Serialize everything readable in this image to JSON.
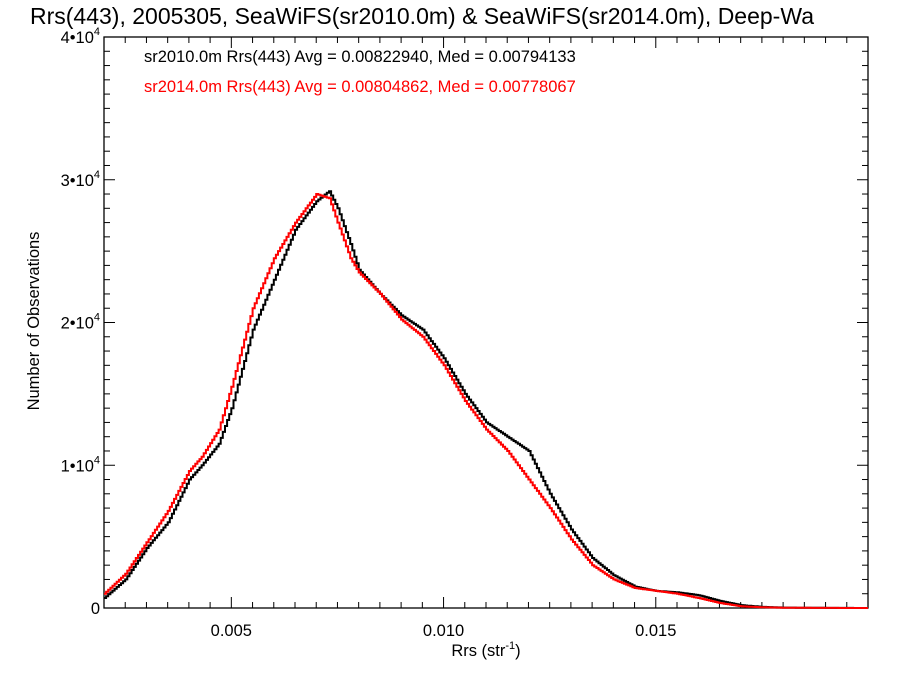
{
  "chart_data": {
    "type": "line",
    "title": "Rrs(443), 2005305, SeaWiFS(sr2010.0m) & SeaWiFS(sr2014.0m), Deep-Wa",
    "xlabel": "Rrs (str",
    "xlabel_sup": "-1",
    "xlabel_end": ")",
    "ylabel": "Number of Observations",
    "xlim": [
      0.002,
      0.02
    ],
    "ylim": [
      0,
      40000
    ],
    "x_ticks": [
      {
        "value": 0.005,
        "label": "0.005"
      },
      {
        "value": 0.01,
        "label": "0.010"
      },
      {
        "value": 0.015,
        "label": "0.015"
      }
    ],
    "y_ticks": [
      {
        "value": 0,
        "mant": "0",
        "exp": ""
      },
      {
        "value": 10000,
        "mant": "1•10",
        "exp": "4"
      },
      {
        "value": 20000,
        "mant": "2•10",
        "exp": "4"
      },
      {
        "value": 30000,
        "mant": "3•10",
        "exp": "4"
      },
      {
        "value": 40000,
        "mant": "4•10",
        "exp": "4"
      }
    ],
    "annotations": [
      {
        "text": "sr2010.0m Rrs(443) Avg = 0.00822940, Med = 0.00794133",
        "color": "#000000"
      },
      {
        "text": "sr2014.0m Rrs(443) Avg = 0.00804862, Med = 0.00778067",
        "color": "#ff0000"
      }
    ],
    "grid": false,
    "series": [
      {
        "name": "sr2010.0m",
        "color": "#000000",
        "points": [
          [
            0.002,
            700
          ],
          [
            0.0025,
            2000
          ],
          [
            0.003,
            4200
          ],
          [
            0.0035,
            6000
          ],
          [
            0.004,
            9000
          ],
          [
            0.0043,
            10000
          ],
          [
            0.0047,
            11500
          ],
          [
            0.005,
            14000
          ],
          [
            0.0055,
            19500
          ],
          [
            0.006,
            23000
          ],
          [
            0.0065,
            26500
          ],
          [
            0.007,
            28500
          ],
          [
            0.0073,
            29200
          ],
          [
            0.0075,
            28000
          ],
          [
            0.0078,
            25500
          ],
          [
            0.008,
            23700
          ],
          [
            0.0085,
            22000
          ],
          [
            0.009,
            20500
          ],
          [
            0.0095,
            19500
          ],
          [
            0.01,
            17500
          ],
          [
            0.0105,
            15000
          ],
          [
            0.011,
            13000
          ],
          [
            0.0115,
            12000
          ],
          [
            0.012,
            11000
          ],
          [
            0.0125,
            8000
          ],
          [
            0.013,
            5500
          ],
          [
            0.0135,
            3500
          ],
          [
            0.014,
            2300
          ],
          [
            0.0145,
            1500
          ],
          [
            0.015,
            1200
          ],
          [
            0.0155,
            1100
          ],
          [
            0.016,
            900
          ],
          [
            0.0165,
            500
          ],
          [
            0.017,
            200
          ],
          [
            0.0175,
            80
          ],
          [
            0.018,
            30
          ],
          [
            0.019,
            10
          ],
          [
            0.02,
            0
          ]
        ]
      },
      {
        "name": "sr2014.0m",
        "color": "#ff0000",
        "points": [
          [
            0.002,
            1000
          ],
          [
            0.0025,
            2400
          ],
          [
            0.003,
            4600
          ],
          [
            0.0035,
            6800
          ],
          [
            0.004,
            9600
          ],
          [
            0.0043,
            10600
          ],
          [
            0.0047,
            12500
          ],
          [
            0.005,
            15500
          ],
          [
            0.0055,
            21000
          ],
          [
            0.006,
            24500
          ],
          [
            0.0065,
            27000
          ],
          [
            0.007,
            29000
          ],
          [
            0.0073,
            28700
          ],
          [
            0.0075,
            27000
          ],
          [
            0.0078,
            24500
          ],
          [
            0.008,
            23500
          ],
          [
            0.0085,
            22000
          ],
          [
            0.009,
            20200
          ],
          [
            0.0095,
            19000
          ],
          [
            0.01,
            17000
          ],
          [
            0.0105,
            14500
          ],
          [
            0.011,
            12500
          ],
          [
            0.0115,
            11000
          ],
          [
            0.012,
            9000
          ],
          [
            0.0125,
            7000
          ],
          [
            0.013,
            4800
          ],
          [
            0.0135,
            3000
          ],
          [
            0.014,
            2000
          ],
          [
            0.0145,
            1400
          ],
          [
            0.015,
            1200
          ],
          [
            0.0155,
            1000
          ],
          [
            0.016,
            700
          ],
          [
            0.0165,
            350
          ],
          [
            0.017,
            120
          ],
          [
            0.0175,
            50
          ],
          [
            0.018,
            20
          ],
          [
            0.019,
            5
          ],
          [
            0.02,
            0
          ]
        ]
      }
    ]
  }
}
